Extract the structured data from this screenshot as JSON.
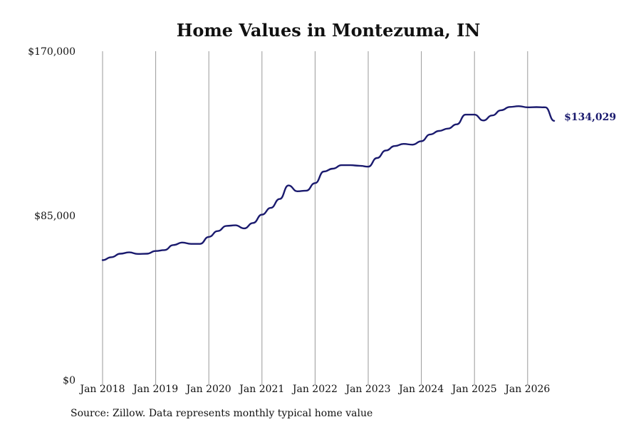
{
  "chart_data": {
    "type": "line",
    "title": "Home Values in Montezuma, IN",
    "source_note": "Source: Zillow. Data represents monthly typical home value",
    "y_ticks": [
      "$170,000",
      "$85,000",
      "$0"
    ],
    "y_tick_values": [
      170000,
      85000,
      0
    ],
    "ylim": [
      0,
      170000
    ],
    "x_ticks": [
      "Jan 2018",
      "Jan 2019",
      "Jan 2020",
      "Jan 2021",
      "Jan 2022",
      "Jan 2023",
      "Jan 2024",
      "Jan 2025",
      "Jan 2026"
    ],
    "x_tick_years": [
      2018,
      2019,
      2020,
      2021,
      2022,
      2023,
      2024,
      2025,
      2026
    ],
    "xlim": [
      "2018-01",
      "2026-07"
    ],
    "grid": "vertical",
    "line_color": "#1a1a6e",
    "grid_color": "#999999",
    "end_label": "$134,029",
    "series": [
      {
        "x": [
          "2018-01",
          "2018-03",
          "2018-05",
          "2018-07",
          "2018-09",
          "2018-11",
          "2019-01",
          "2019-03",
          "2019-05",
          "2019-07",
          "2019-09",
          "2019-11",
          "2020-01",
          "2020-03",
          "2020-05",
          "2020-07",
          "2020-09",
          "2020-11",
          "2021-01",
          "2021-03",
          "2021-05",
          "2021-07",
          "2021-09",
          "2021-11",
          "2022-01",
          "2022-03",
          "2022-05",
          "2022-07",
          "2022-09",
          "2022-11",
          "2023-01",
          "2023-03",
          "2023-05",
          "2023-07",
          "2023-09",
          "2023-11",
          "2024-01",
          "2024-03",
          "2024-05",
          "2024-07",
          "2024-09",
          "2024-11",
          "2025-01",
          "2025-03",
          "2025-05",
          "2025-07",
          "2025-09",
          "2025-11",
          "2026-01",
          "2026-03",
          "2026-05",
          "2026-07"
        ],
        "values": [
          62000,
          63500,
          65300,
          66000,
          65200,
          65300,
          66700,
          67200,
          69800,
          71100,
          70400,
          70400,
          74000,
          77000,
          79700,
          80000,
          78400,
          81200,
          85500,
          89000,
          93600,
          100600,
          97600,
          97900,
          101800,
          107800,
          109300,
          111100,
          111100,
          110800,
          110300,
          114800,
          118700,
          121000,
          122100,
          121700,
          123500,
          127000,
          128800,
          130000,
          132200,
          137200,
          137200,
          134200,
          136800,
          139500,
          141200,
          141600,
          141000,
          141100,
          141000,
          134029
        ]
      }
    ]
  }
}
